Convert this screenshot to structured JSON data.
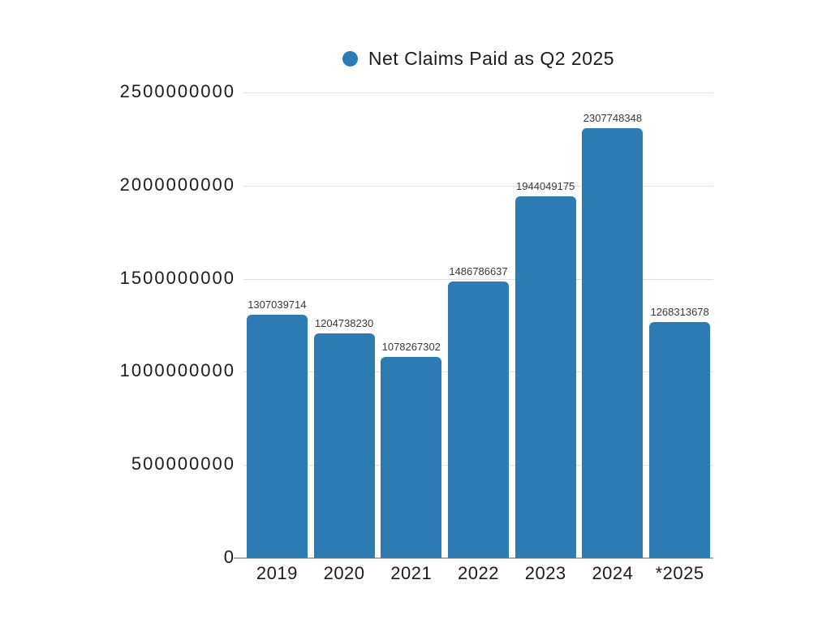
{
  "legend": {
    "label": "Net Claims Paid as Q2 2025",
    "marker_color": "#2d7bb3"
  },
  "chart_data": {
    "type": "bar",
    "title": "Net Claims Paid as Q2 2025",
    "categories": [
      "2019",
      "2020",
      "2021",
      "2022",
      "2023",
      "2024",
      "*2025"
    ],
    "values": [
      1307039714,
      1204738230,
      1078267302,
      1486786637,
      1944049175,
      2307748348,
      1268313678
    ],
    "value_labels": [
      "1307039714",
      "1204738230",
      "1078267302",
      "1486786637",
      "1944049175",
      "2307748348",
      "1268313678"
    ],
    "ylabel": "",
    "xlabel": "",
    "ylim": [
      0,
      2500000000
    ],
    "ytick_step": 500000000,
    "ytick_labels": [
      "0",
      "500000000",
      "1000000000",
      "1500000000",
      "2000000000",
      "2500000000"
    ],
    "grid": "horizontal",
    "legend_position": "top-center",
    "bar_color": "#2d7bb3",
    "gridline_color": "#e0e0e0",
    "axis_line_color": "#b2b2b2",
    "axis_label_color": "#1c1c1c",
    "value_label_color": "#383838"
  }
}
